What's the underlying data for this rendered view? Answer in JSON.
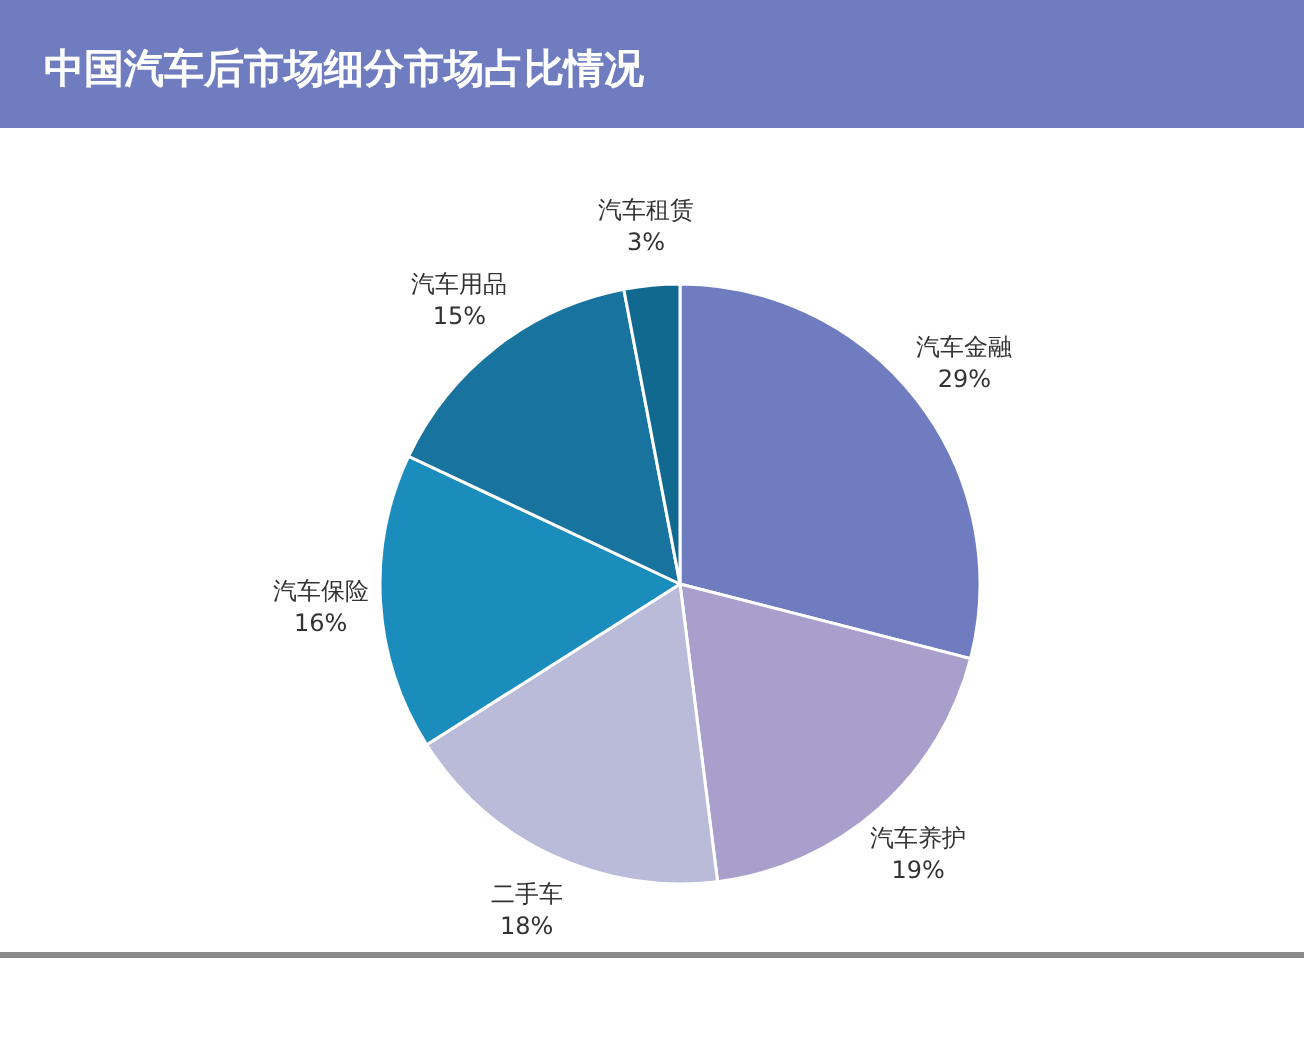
{
  "chart_data": {
    "type": "pie",
    "title": "中国汽车后市场细分市场占比情况",
    "categories": [
      "汽车金融",
      "汽车养护",
      "二手车",
      "汽车保险",
      "汽车用品",
      "汽车租赁"
    ],
    "values": [
      29,
      19,
      18,
      16,
      15,
      3
    ],
    "value_labels": [
      "29%",
      "19%",
      "18%",
      "16%",
      "15%",
      "3%"
    ],
    "colors": [
      "#6f7dc0",
      "#a99fcc",
      "#b9bbd9",
      "#1a8dbd",
      "#18749e",
      "#12698f"
    ],
    "legend": false
  }
}
